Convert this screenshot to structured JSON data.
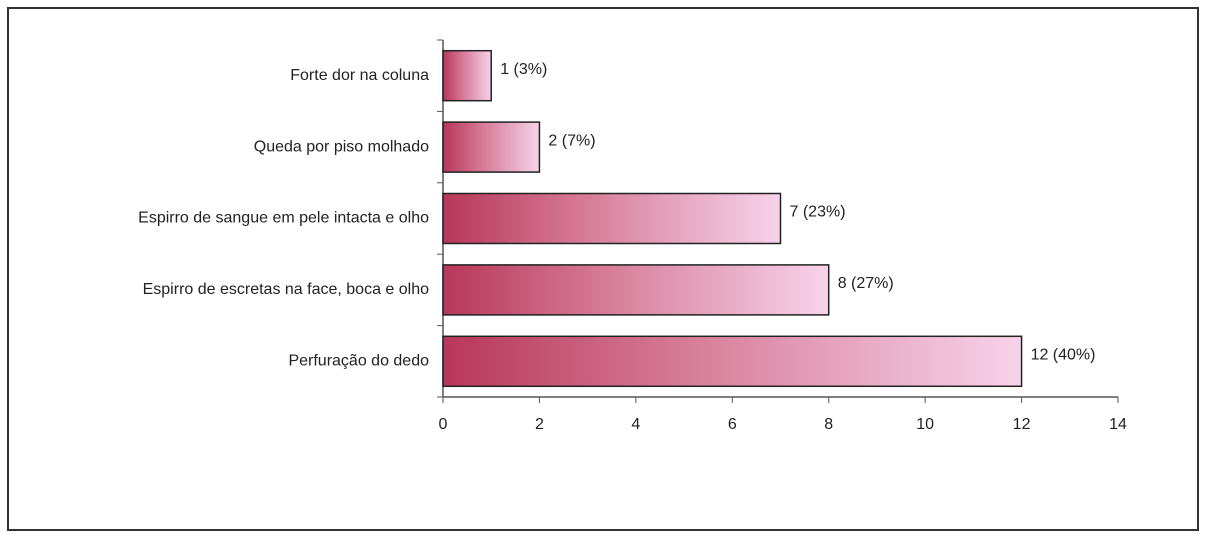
{
  "chart_data": {
    "type": "barh",
    "categories": [
      "Forte dor na coluna",
      "Queda por piso molhado",
      "Espirro de sangue em pele intacta e olho",
      "Espirro de escretas na face, boca e olho",
      "Perfuração do dedo"
    ],
    "values": [
      1,
      2,
      7,
      8,
      12
    ],
    "value_labels": [
      "1 (3%)",
      "2 (7%)",
      "7 (23%)",
      "8 (27%)",
      "12 (40%)"
    ],
    "xlim": [
      0,
      14
    ],
    "xticks": [
      0,
      2,
      4,
      6,
      8,
      10,
      12,
      14
    ]
  }
}
